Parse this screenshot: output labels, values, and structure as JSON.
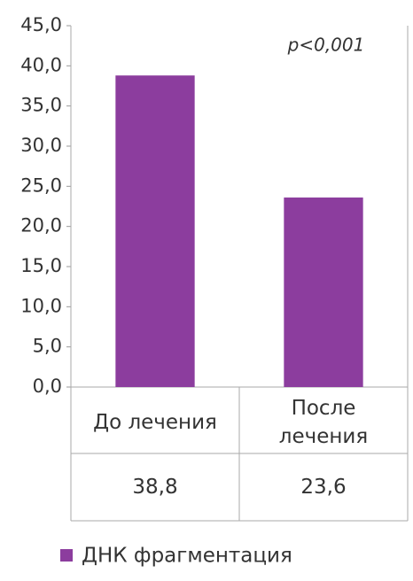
{
  "chart_data": {
    "type": "bar",
    "annotation": "p<0,001",
    "categories": [
      "До лечения",
      "После лечения"
    ],
    "series": [
      {
        "name": "ДНК фрагментация",
        "color": "#8c3d9e",
        "values": [
          38.8,
          23.6
        ],
        "value_labels": [
          "38,8",
          "23,6"
        ]
      }
    ],
    "ylim": [
      0,
      45
    ],
    "yticks": [
      {
        "value": 0,
        "label": "0,0"
      },
      {
        "value": 5,
        "label": "5,0"
      },
      {
        "value": 10,
        "label": "10,0"
      },
      {
        "value": 15,
        "label": "15,0"
      },
      {
        "value": 20,
        "label": "20,0"
      },
      {
        "value": 25,
        "label": "25,0"
      },
      {
        "value": 30,
        "label": "30,0"
      },
      {
        "value": 35,
        "label": "35,0"
      },
      {
        "value": 40,
        "label": "40,0"
      },
      {
        "value": 45,
        "label": "45,0"
      }
    ],
    "grid": false
  }
}
